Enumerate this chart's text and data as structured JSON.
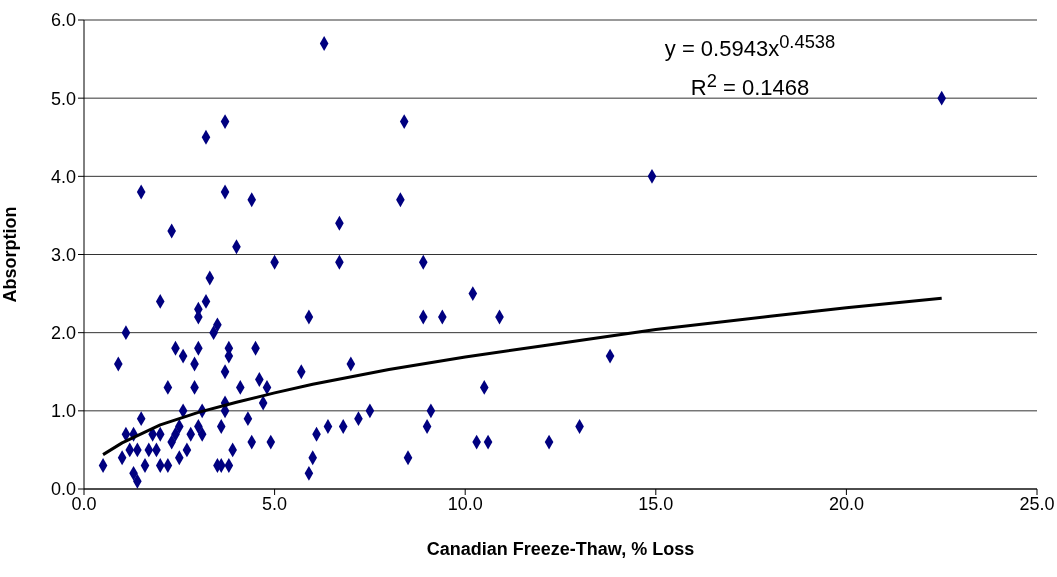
{
  "chart_data": {
    "type": "scatter",
    "xlabel": "Canadian Freeze-Thaw, % Loss",
    "ylabel": "Absorption",
    "xlim": [
      0,
      25
    ],
    "xticks": [
      {
        "value": 0,
        "label": "0.0"
      },
      {
        "value": 5,
        "label": "5.0"
      },
      {
        "value": 10,
        "label": "10.0"
      },
      {
        "value": 15,
        "label": "15.0"
      },
      {
        "value": 20,
        "label": "20.0"
      },
      {
        "value": 25,
        "label": "25.0"
      }
    ],
    "ylim": [
      0,
      6
    ],
    "yticks": [
      {
        "value": 0,
        "label": "0.0"
      },
      {
        "value": 1,
        "label": "1.0"
      },
      {
        "value": 2,
        "label": "2.0"
      },
      {
        "value": 3,
        "label": "3.0"
      },
      {
        "value": 4,
        "label": "4.0"
      },
      {
        "value": 5,
        "label": "5.0"
      },
      {
        "value": 6,
        "label": "6.0"
      }
    ],
    "grid": "y",
    "legend": false,
    "marker": "diamond",
    "annotations": [
      "y = 0.5943x$^{0.4538}$",
      "R$^{2}$ = 0.1468"
    ],
    "series": [
      {
        "color": "#000080",
        "x": [
          0.5,
          0.9,
          1.0,
          1.1,
          1.1,
          1.2,
          1.3,
          1.3,
          1.4,
          1.4,
          1.5,
          1.5,
          1.6,
          1.7,
          1.8,
          1.9,
          2.0,
          2.0,
          2.0,
          2.2,
          2.2,
          2.3,
          2.3,
          2.4,
          2.4,
          2.5,
          2.5,
          2.6,
          2.6,
          2.7,
          2.8,
          2.9,
          2.9,
          3.0,
          3.0,
          3.0,
          3.0,
          3.1,
          3.1,
          3.2,
          3.2,
          3.3,
          3.4,
          3.5,
          3.5,
          3.6,
          3.6,
          3.7,
          3.7,
          3.7,
          3.8,
          3.8,
          3.7,
          3.7,
          3.8,
          3.9,
          4.0,
          4.1,
          4.3,
          4.4,
          4.4,
          4.5,
          4.6,
          4.7,
          4.8,
          4.9,
          5.0,
          5.7,
          5.9,
          5.9,
          6.0,
          6.1,
          6.4,
          6.3,
          6.7,
          6.7,
          6.8,
          7.0,
          7.2,
          7.5,
          8.3,
          8.4,
          8.5,
          8.9,
          8.9,
          9.0,
          9.1,
          9.4,
          10.2,
          10.3,
          10.5,
          10.6,
          10.9,
          12.2,
          13.0,
          13.8,
          14.9,
          22.5
        ],
        "values": [
          0.3,
          1.6,
          0.4,
          2.0,
          0.7,
          0.5,
          0.7,
          0.2,
          0.1,
          0.5,
          3.8,
          0.9,
          0.3,
          0.5,
          0.7,
          0.5,
          2.4,
          0.3,
          0.7,
          0.3,
          1.3,
          3.3,
          0.6,
          0.7,
          1.8,
          0.4,
          0.8,
          1.7,
          1.0,
          0.5,
          0.7,
          1.6,
          1.3,
          2.2,
          2.3,
          0.8,
          1.8,
          0.7,
          1.0,
          2.4,
          4.5,
          2.7,
          2.0,
          2.1,
          0.3,
          0.3,
          0.8,
          1.5,
          1.0,
          1.1,
          1.7,
          1.8,
          4.7,
          3.8,
          0.3,
          0.5,
          3.1,
          1.3,
          0.9,
          0.6,
          3.7,
          1.8,
          1.4,
          1.1,
          1.3,
          0.6,
          2.9,
          1.5,
          0.2,
          2.2,
          0.4,
          0.7,
          0.8,
          5.7,
          3.4,
          2.9,
          0.8,
          1.6,
          0.9,
          1.0,
          3.7,
          4.7,
          0.4,
          2.9,
          2.2,
          0.8,
          1.0,
          2.2,
          2.5,
          0.6,
          1.3,
          0.6,
          2.2,
          0.6,
          0.8,
          1.7,
          4.0,
          5.0
        ]
      },
      {
        "type": "line",
        "marker": "none",
        "color": "#000000",
        "x": [
          0.5,
          1,
          2,
          3,
          4,
          5,
          6,
          8,
          10,
          12,
          15,
          18,
          20,
          22.5
        ],
        "values": [
          0.44,
          0.59,
          0.82,
          0.98,
          1.11,
          1.23,
          1.34,
          1.53,
          1.69,
          1.83,
          2.04,
          2.21,
          2.32,
          2.44
        ]
      }
    ]
  }
}
